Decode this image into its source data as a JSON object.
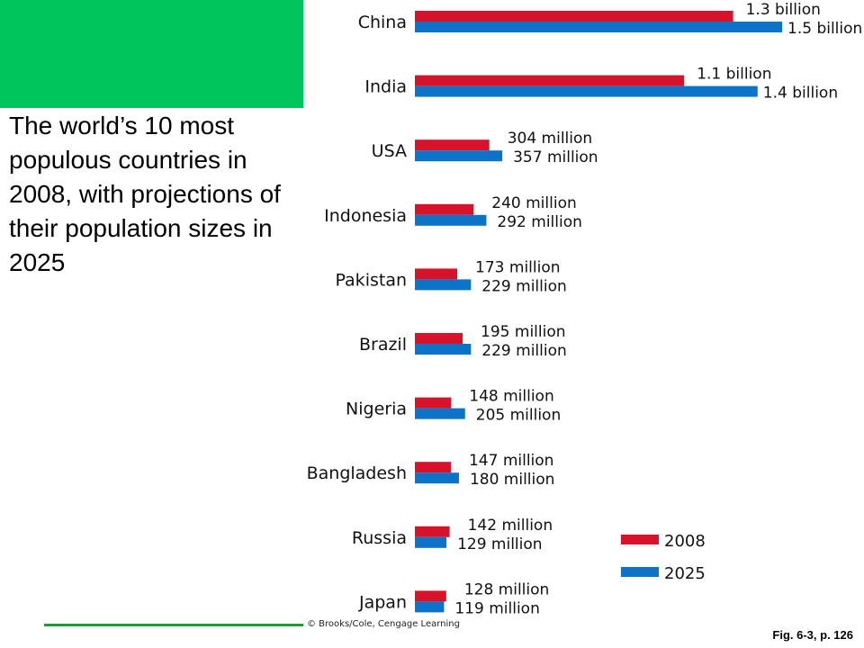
{
  "caption": "The world’s 10 most populous countries in 2008, with projections of their population sizes in 2025",
  "credit": "© Brooks/Cole, Cengage Learning",
  "fig_ref": "Fig. 6-3, p. 126",
  "colors": {
    "accent_green": "#00c45c",
    "series_2008": "#d9122b",
    "series_2025": "#0d73c8"
  },
  "chart_data": {
    "type": "bar",
    "orientation": "horizontal",
    "categories": [
      "China",
      "India",
      "USA",
      "Indonesia",
      "Pakistan",
      "Brazil",
      "Nigeria",
      "Bangladesh",
      "Russia",
      "Japan"
    ],
    "series": [
      {
        "name": "2008",
        "color": "#d9122b",
        "values": [
          1300,
          1100,
          304,
          240,
          173,
          195,
          148,
          147,
          142,
          128
        ],
        "labels": [
          "1.3 billion",
          "1.1 billion",
          "304 million",
          "240 million",
          "173 million",
          "195 million",
          "148 million",
          "147 million",
          "142 million",
          "128 million"
        ]
      },
      {
        "name": "2025",
        "color": "#0d73c8",
        "values": [
          1500,
          1400,
          357,
          292,
          229,
          229,
          205,
          180,
          129,
          119
        ],
        "labels": [
          "1.5 billion",
          "1.4 billion",
          "357 million",
          "292 million",
          "229 million",
          "229 million",
          "205 million",
          "180 million",
          "129 million",
          "119 million"
        ]
      }
    ],
    "unit": "millions",
    "legend": {
      "position": "bottom-right",
      "entries": [
        "2008",
        "2025"
      ]
    },
    "grid": false,
    "xlim": [
      0,
      1500
    ]
  }
}
